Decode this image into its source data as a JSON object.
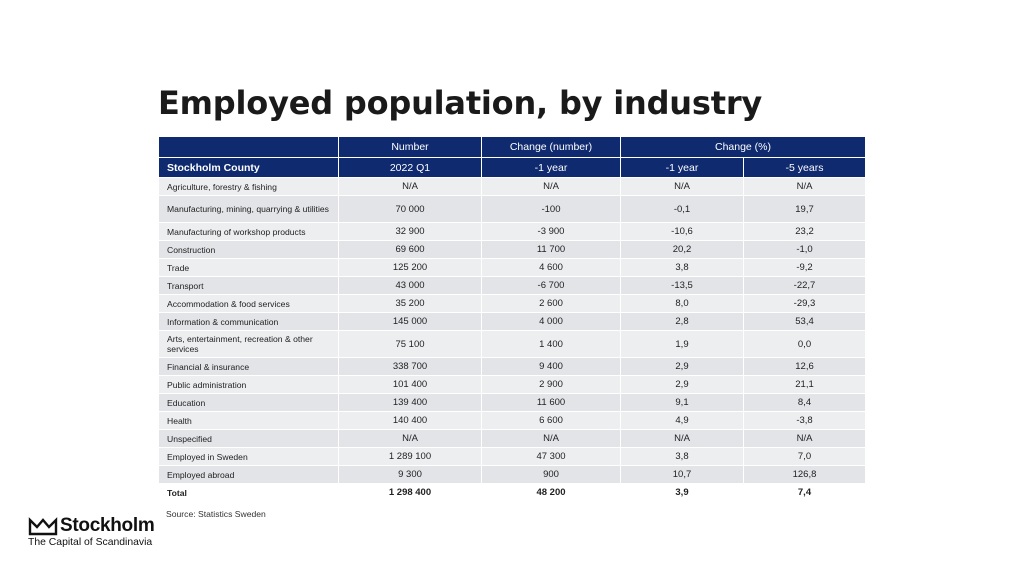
{
  "title": "Employed population, by industry",
  "header": {
    "number": "Number",
    "change_number": "Change (number)",
    "change_pct": "Change (%)",
    "region": "Stockholm County",
    "period": "2022 Q1",
    "one_year_a": "-1 year",
    "one_year_b": "-1 year",
    "five_years": "-5 years"
  },
  "rows": [
    {
      "label": "Agriculture, forestry & fishing",
      "number": "N/A",
      "change": "N/A",
      "pct1": "N/A",
      "pct5": "N/A"
    },
    {
      "label": "Manufacturing, mining, quarrying & utilities",
      "number": "70 000",
      "change": "-100",
      "pct1": "-0,1",
      "pct5": "19,7"
    },
    {
      "label": "Manufacturing of workshop products",
      "number": "32 900",
      "change": "-3 900",
      "pct1": "-10,6",
      "pct5": "23,2"
    },
    {
      "label": "Construction",
      "number": "69 600",
      "change": "11 700",
      "pct1": "20,2",
      "pct5": "-1,0"
    },
    {
      "label": "Trade",
      "number": "125 200",
      "change": "4 600",
      "pct1": "3,8",
      "pct5": "-9,2"
    },
    {
      "label": "Transport",
      "number": "43 000",
      "change": "-6 700",
      "pct1": "-13,5",
      "pct5": "-22,7"
    },
    {
      "label": "Accommodation & food services",
      "number": "35 200",
      "change": "2 600",
      "pct1": "8,0",
      "pct5": "-29,3"
    },
    {
      "label": "Information & communication",
      "number": "145 000",
      "change": "4 000",
      "pct1": "2,8",
      "pct5": "53,4"
    },
    {
      "label": "Arts, entertainment, recreation & other services",
      "number": "75 100",
      "change": "1 400",
      "pct1": "1,9",
      "pct5": "0,0"
    },
    {
      "label": "Financial & insurance",
      "number": "338 700",
      "change": "9 400",
      "pct1": "2,9",
      "pct5": "12,6"
    },
    {
      "label": "Public administration",
      "number": "101 400",
      "change": "2 900",
      "pct1": "2,9",
      "pct5": "21,1"
    },
    {
      "label": "Education",
      "number": "139 400",
      "change": "11 600",
      "pct1": "9,1",
      "pct5": "8,4"
    },
    {
      "label": "Health",
      "number": "140 400",
      "change": "6 600",
      "pct1": "4,9",
      "pct5": "-3,8"
    },
    {
      "label": "Unspecified",
      "number": "N/A",
      "change": "N/A",
      "pct1": "N/A",
      "pct5": "N/A"
    },
    {
      "label": "Employed in Sweden",
      "number": "1 289 100",
      "change": "47 300",
      "pct1": "3,8",
      "pct5": "7,0"
    },
    {
      "label": "Employed abroad",
      "number": "9 300",
      "change": "900",
      "pct1": "10,7",
      "pct5": "126,8"
    },
    {
      "label": "Total",
      "number": "1 298 400",
      "change": "48 200",
      "pct1": "3,9",
      "pct5": "7,4"
    }
  ],
  "source": "Source: Statistics Sweden",
  "logo": {
    "icon": "crown-icon",
    "word": "Stockholm",
    "tagline": "The Capital of Scandinavia"
  },
  "colors": {
    "header_bg": "#0f2a6e",
    "row_light": "#eceef0",
    "row_dark": "#e2e4e7"
  }
}
